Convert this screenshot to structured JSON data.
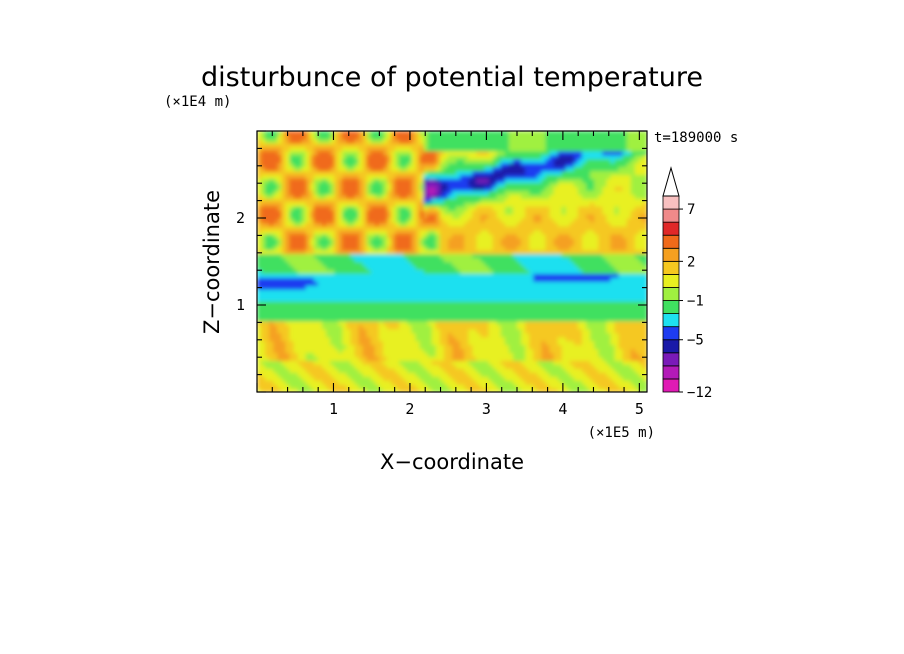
{
  "chart_data": {
    "type": "heatmap",
    "title": "disturbunce of potential temperature",
    "time_label": "t=189000 s",
    "xlabel": "X−coordinate",
    "ylabel": "Z−coordinate",
    "x_unit": "(×1E5 m)",
    "y_unit": "(×1E4 m)",
    "xlim": [
      0,
      5.1
    ],
    "ylim": [
      0,
      3.0
    ],
    "x_ticks": [
      {
        "v": 1,
        "label": "1"
      },
      {
        "v": 2,
        "label": "2"
      },
      {
        "v": 3,
        "label": "3"
      },
      {
        "v": 4,
        "label": "4"
      },
      {
        "v": 5,
        "label": "5"
      }
    ],
    "y_ticks": [
      {
        "v": 1,
        "label": "1"
      },
      {
        "v": 2,
        "label": "2"
      }
    ],
    "colorbar": {
      "levels": [
        -12,
        -10,
        -8,
        -6,
        -5,
        -4,
        -3,
        -1,
        0,
        1,
        2,
        3,
        5,
        6,
        7,
        8,
        10
      ],
      "colors": [
        "#e01ab4",
        "#b31ab8",
        "#7a1ab8",
        "#1a1aa8",
        "#1e3cf0",
        "#1ee0f0",
        "#40e060",
        "#a0f040",
        "#e8f020",
        "#f5c820",
        "#f5a020",
        "#f06a1a",
        "#e02828",
        "#f08a8a",
        "#f8c0c0",
        "#ffffff"
      ],
      "labels": [
        {
          "v": 7,
          "label": "7"
        },
        {
          "v": 2,
          "label": "2"
        },
        {
          "v": -1,
          "label": "−1"
        },
        {
          "v": -5,
          "label": "−5"
        },
        {
          "v": -12,
          "label": "−12"
        }
      ],
      "extend": "max"
    },
    "field_description": "bands: lower yellow/green layer z<0.8, cyan/blue cool layer z 0.8-1.5, warm orange/red wavy region above z 1.6 on left, blue bands tilting upward to the right"
  }
}
